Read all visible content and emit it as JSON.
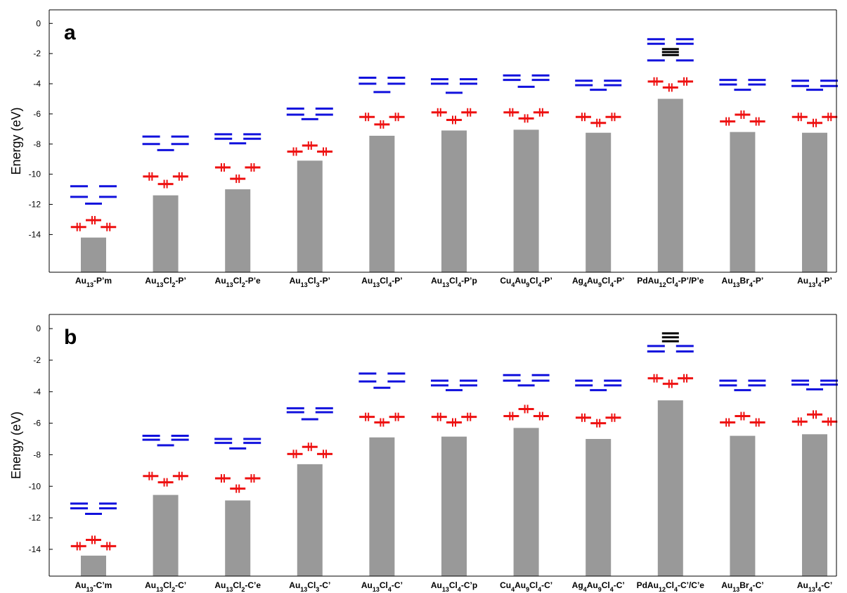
{
  "colors": {
    "bar": "#999999",
    "occupied": "#ee1111",
    "unoccupied": "#1111dd",
    "dopant": "#000000",
    "axis": "#000000"
  },
  "chart_data": [
    {
      "type": "bar",
      "panel_label": "a",
      "ylabel": "Energy (eV)",
      "ylim": [
        -16.5,
        0.9
      ],
      "yticks": [
        0,
        -2,
        -4,
        -6,
        -8,
        -10,
        -12,
        -14
      ],
      "categories": [
        {
          "base": "Au",
          "sub1": "13",
          "mid": "",
          "sub2": "",
          "tail": "-P’m"
        },
        {
          "base": "Au",
          "sub1": "13",
          "mid": "Cl",
          "sub2": "2",
          "tail": "-P’"
        },
        {
          "base": "Au",
          "sub1": "13",
          "mid": "Cl",
          "sub2": "2",
          "tail": "-P’e"
        },
        {
          "base": "Au",
          "sub1": "13",
          "mid": "Cl",
          "sub2": "3",
          "tail": "-P’"
        },
        {
          "base": "Au",
          "sub1": "13",
          "mid": "Cl",
          "sub2": "4",
          "tail": "-P’"
        },
        {
          "base": "Au",
          "sub1": "13",
          "mid": "Cl",
          "sub2": "4",
          "tail": "-P’p"
        },
        {
          "base": "Cu",
          "sub1": "4",
          "mid": "Au",
          "sub2": "9",
          "tail": "Cl",
          "sub3": "4",
          "tail2": "-P’"
        },
        {
          "base": "Ag",
          "sub1": "4",
          "mid": "Au",
          "sub2": "9",
          "tail": "Cl",
          "sub3": "4",
          "tail2": "-P’"
        },
        {
          "base": "PdAu",
          "sub1": "12",
          "mid": "Cl",
          "sub2": "4",
          "tail": "-P’/P’e"
        },
        {
          "base": "Au",
          "sub1": "13",
          "mid": "Br",
          "sub2": "4",
          "tail": "-P’"
        },
        {
          "base": "Au",
          "sub1": "13",
          "mid": "I",
          "sub2": "4",
          "tail": "-P’"
        }
      ],
      "bar_tops": [
        -14.2,
        -11.4,
        -11.0,
        -9.1,
        -7.45,
        -7.1,
        -7.05,
        -7.25,
        -5.0,
        -7.2,
        -7.25
      ],
      "levels": [
        {
          "occupied": [
            -13.5,
            -13.05,
            -13.5
          ],
          "unoccupied": [
            -10.8,
            -11.5,
            -11.95
          ],
          "dopant": []
        },
        {
          "occupied": [
            -10.15,
            -10.65,
            -10.15
          ],
          "unoccupied": [
            -7.5,
            -8.0,
            -8.4
          ],
          "dopant": []
        },
        {
          "occupied": [
            -9.55,
            -10.3,
            -9.55
          ],
          "unoccupied": [
            -7.35,
            -7.65,
            -7.95
          ],
          "dopant": []
        },
        {
          "occupied": [
            -8.5,
            -8.1,
            -8.5
          ],
          "unoccupied": [
            -5.65,
            -6.05,
            -6.35
          ],
          "dopant": []
        },
        {
          "occupied": [
            -6.2,
            -6.7,
            -6.2
          ],
          "unoccupied": [
            -3.6,
            -4.0,
            -4.55
          ],
          "dopant": []
        },
        {
          "occupied": [
            -5.9,
            -6.4,
            -5.9
          ],
          "unoccupied": [
            -3.7,
            -4.0,
            -4.6
          ],
          "dopant": []
        },
        {
          "occupied": [
            -5.9,
            -6.3,
            -5.9
          ],
          "unoccupied": [
            -3.45,
            -3.75,
            -4.2
          ],
          "dopant": []
        },
        {
          "occupied": [
            -6.2,
            -6.6,
            -6.2
          ],
          "unoccupied": [
            -3.8,
            -4.1,
            -4.4
          ],
          "dopant": []
        },
        {
          "occupied": [
            -3.85,
            -4.25,
            -3.85
          ],
          "unoccupied": [
            -1.05,
            -1.35,
            -2.45
          ],
          "dopant": [
            -1.7,
            -1.9,
            -2.1
          ]
        },
        {
          "occupied": [
            -6.5,
            -6.05,
            -6.5
          ],
          "unoccupied": [
            -3.75,
            -4.05,
            -4.4
          ],
          "dopant": []
        },
        {
          "occupied": [
            -6.2,
            -6.6,
            -6.2
          ],
          "unoccupied": [
            -3.8,
            -4.15,
            -4.4
          ],
          "dopant": []
        }
      ]
    },
    {
      "type": "bar",
      "panel_label": "b",
      "ylabel": "Energy (eV)",
      "ylim": [
        -15.7,
        0.9
      ],
      "yticks": [
        0,
        -2,
        -4,
        -6,
        -8,
        -10,
        -12,
        -14
      ],
      "categories": [
        {
          "base": "Au",
          "sub1": "13",
          "mid": "",
          "sub2": "",
          "tail": "-C’m"
        },
        {
          "base": "Au",
          "sub1": "13",
          "mid": "Cl",
          "sub2": "2",
          "tail": "-C’"
        },
        {
          "base": "Au",
          "sub1": "13",
          "mid": "Cl",
          "sub2": "2",
          "tail": "-C’e"
        },
        {
          "base": "Au",
          "sub1": "13",
          "mid": "Cl",
          "sub2": "3",
          "tail": "-C’"
        },
        {
          "base": "Au",
          "sub1": "13",
          "mid": "Cl",
          "sub2": "4",
          "tail": "-C’"
        },
        {
          "base": "Au",
          "sub1": "13",
          "mid": "Cl",
          "sub2": "4",
          "tail": "-C’p"
        },
        {
          "base": "Cu",
          "sub1": "4",
          "mid": "Au",
          "sub2": "9",
          "tail": "Cl",
          "sub3": "4",
          "tail2": "-C’"
        },
        {
          "base": "Ag",
          "sub1": "4",
          "mid": "Au",
          "sub2": "9",
          "tail": "Cl",
          "sub3": "4",
          "tail2": "-C’"
        },
        {
          "base": "PdAu",
          "sub1": "12",
          "mid": "Cl",
          "sub2": "4",
          "tail": "-C’/C’e"
        },
        {
          "base": "Au",
          "sub1": "13",
          "mid": "Br",
          "sub2": "4",
          "tail": "-C’"
        },
        {
          "base": "Au",
          "sub1": "13",
          "mid": "I",
          "sub2": "4",
          "tail": "-C’"
        }
      ],
      "bar_tops": [
        -14.4,
        -10.55,
        -10.9,
        -8.6,
        -6.9,
        -6.85,
        -6.3,
        -7.0,
        -4.55,
        -6.8,
        -6.7
      ],
      "levels": [
        {
          "occupied": [
            -13.8,
            -13.4,
            -13.8
          ],
          "unoccupied": [
            -11.1,
            -11.4,
            -11.75
          ],
          "dopant": []
        },
        {
          "occupied": [
            -9.35,
            -9.75,
            -9.35
          ],
          "unoccupied": [
            -6.8,
            -7.05,
            -7.4
          ],
          "dopant": []
        },
        {
          "occupied": [
            -9.5,
            -10.15,
            -9.5
          ],
          "unoccupied": [
            -7.0,
            -7.25,
            -7.6
          ],
          "dopant": []
        },
        {
          "occupied": [
            -7.95,
            -7.5,
            -7.95
          ],
          "unoccupied": [
            -5.05,
            -5.3,
            -5.75
          ],
          "dopant": []
        },
        {
          "occupied": [
            -5.6,
            -5.95,
            -5.6
          ],
          "unoccupied": [
            -2.85,
            -3.35,
            -3.75
          ],
          "dopant": []
        },
        {
          "occupied": [
            -5.6,
            -5.95,
            -5.6
          ],
          "unoccupied": [
            -3.3,
            -3.6,
            -3.9
          ],
          "dopant": []
        },
        {
          "occupied": [
            -5.55,
            -5.1,
            -5.55
          ],
          "unoccupied": [
            -2.95,
            -3.3,
            -3.6
          ],
          "dopant": []
        },
        {
          "occupied": [
            -5.65,
            -6.0,
            -5.65
          ],
          "unoccupied": [
            -3.3,
            -3.6,
            -3.9
          ],
          "dopant": []
        },
        {
          "occupied": [
            -3.15,
            -3.5,
            -3.15
          ],
          "unoccupied": [
            -1.1,
            -1.45
          ],
          "dopant": [
            -0.3,
            -0.55,
            -0.8
          ]
        },
        {
          "occupied": [
            -5.95,
            -5.55,
            -5.95
          ],
          "unoccupied": [
            -3.3,
            -3.6,
            -3.9
          ],
          "dopant": []
        },
        {
          "occupied": [
            -5.9,
            -5.45,
            -5.9
          ],
          "unoccupied": [
            -3.3,
            -3.55,
            -3.85
          ],
          "dopant": []
        }
      ]
    }
  ]
}
